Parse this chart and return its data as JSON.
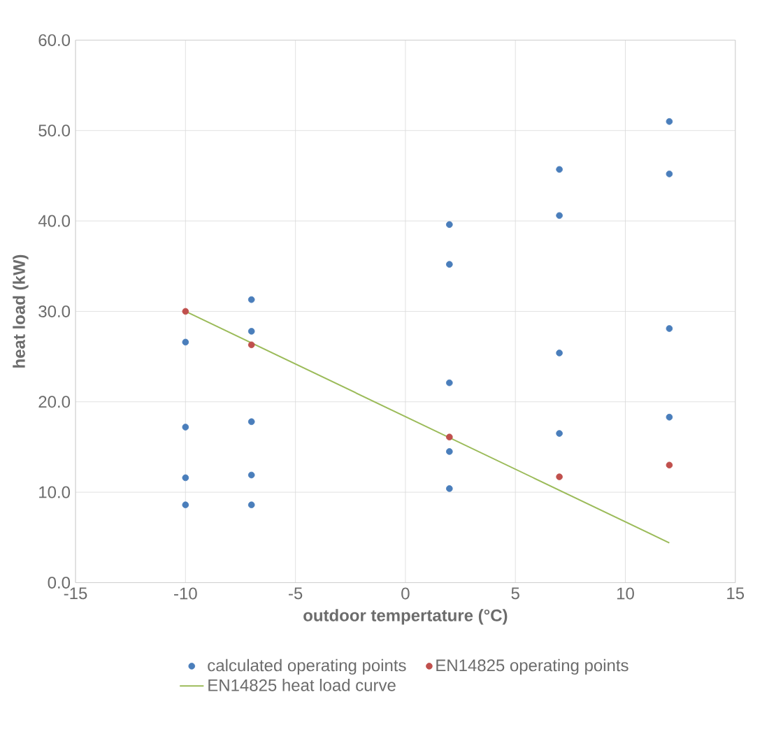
{
  "chart_data": {
    "type": "scatter",
    "xlabel": "outdoor tempertature (°C)",
    "ylabel": "heat load (kW)",
    "xlim": [
      -15,
      15
    ],
    "xticks": [
      -15,
      -10,
      -5,
      0,
      5,
      10,
      15
    ],
    "ylim": [
      0,
      60
    ],
    "yticks": [
      {
        "value": 0,
        "label": "0.0"
      },
      {
        "value": 10,
        "label": "10.0"
      },
      {
        "value": 20,
        "label": "20.0"
      },
      {
        "value": 30,
        "label": "30.0"
      },
      {
        "value": 40,
        "label": "40.0"
      },
      {
        "value": 50,
        "label": "50.0"
      },
      {
        "value": 60,
        "label": "60.0"
      }
    ],
    "grid": true,
    "legend": "bottom",
    "series": [
      {
        "name": "calculated operating points",
        "marker": "circle",
        "color": "#4a7ebb",
        "x": [
          -10,
          -10,
          -10,
          -10,
          -7,
          -7,
          -7,
          -7,
          -7,
          2,
          2,
          2,
          2,
          2,
          7,
          7,
          7,
          7,
          12,
          12,
          12,
          12
        ],
        "values": [
          26.6,
          17.2,
          11.6,
          8.6,
          31.3,
          27.8,
          17.8,
          11.9,
          8.6,
          39.6,
          35.2,
          22.1,
          14.5,
          10.4,
          45.7,
          40.6,
          25.4,
          16.5,
          51.0,
          45.2,
          28.1,
          18.3
        ]
      },
      {
        "name": "EN14825 operating points",
        "marker": "circle",
        "color": "#c0504d",
        "x": [
          -10,
          -7,
          2,
          7,
          12
        ],
        "values": [
          30.0,
          26.3,
          16.1,
          11.7,
          13.0
        ]
      },
      {
        "name": "EN14825 heat load curve",
        "type": "line",
        "marker": "none",
        "line_style": "solid",
        "color": "#9bbb59",
        "x": [
          -10,
          12
        ],
        "values": [
          30.0,
          4.4
        ]
      }
    ]
  }
}
